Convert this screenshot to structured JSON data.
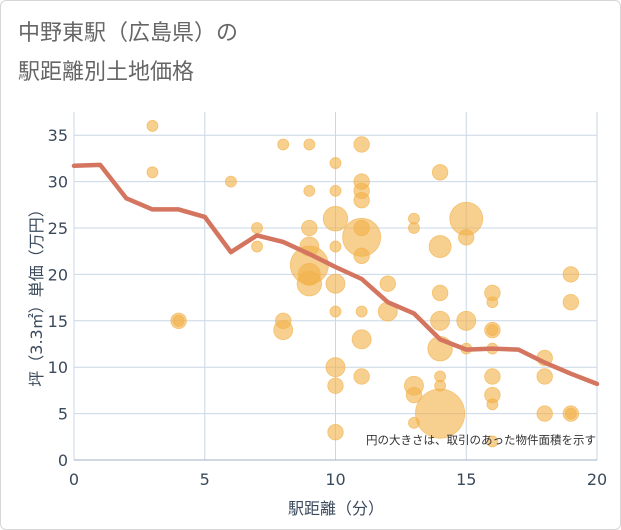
{
  "chart_data": {
    "type": "scatter",
    "title_lines": [
      "中野東駅（広島県）の",
      "駅距離別土地価格"
    ],
    "xlabel": "駅距離（分）",
    "ylabel": "坪（3.3㎡）単価（万円）",
    "xlim": [
      0,
      20
    ],
    "ylim": [
      0,
      37.5
    ],
    "xticks": [
      0,
      5,
      10,
      15,
      20
    ],
    "yticks": [
      0,
      5,
      10,
      15,
      20,
      25,
      30,
      35
    ],
    "grid": true,
    "note": "円の大きさは、取引のあった物件面積を示す",
    "colors": {
      "bubble": "#f2b24a",
      "line": "#d47560",
      "grid": "#c9d7e6",
      "title": "#666666",
      "axis_text": "#3a4a5c"
    },
    "points": [
      {
        "x": 3,
        "y": 36,
        "s": 1
      },
      {
        "x": 3,
        "y": 31,
        "s": 1
      },
      {
        "x": 4,
        "y": 15,
        "s": 2
      },
      {
        "x": 4,
        "y": 15,
        "s": 1
      },
      {
        "x": 6,
        "y": 30,
        "s": 1
      },
      {
        "x": 7,
        "y": 25,
        "s": 1
      },
      {
        "x": 7,
        "y": 23,
        "s": 1
      },
      {
        "x": 8,
        "y": 34,
        "s": 1
      },
      {
        "x": 8,
        "y": 15,
        "s": 2
      },
      {
        "x": 8,
        "y": 14,
        "s": 3
      },
      {
        "x": 9,
        "y": 34,
        "s": 1
      },
      {
        "x": 9,
        "y": 29,
        "s": 1
      },
      {
        "x": 9,
        "y": 25,
        "s": 2
      },
      {
        "x": 9,
        "y": 23,
        "s": 3
      },
      {
        "x": 9,
        "y": 21,
        "s": 12
      },
      {
        "x": 9,
        "y": 20,
        "s": 4
      },
      {
        "x": 9,
        "y": 19,
        "s": 5
      },
      {
        "x": 10,
        "y": 32,
        "s": 1
      },
      {
        "x": 10,
        "y": 29,
        "s": 1
      },
      {
        "x": 10,
        "y": 26,
        "s": 5
      },
      {
        "x": 10,
        "y": 23,
        "s": 1
      },
      {
        "x": 10,
        "y": 19,
        "s": 3
      },
      {
        "x": 10,
        "y": 16,
        "s": 1
      },
      {
        "x": 10,
        "y": 10,
        "s": 3
      },
      {
        "x": 10,
        "y": 8,
        "s": 2
      },
      {
        "x": 10,
        "y": 3,
        "s": 2
      },
      {
        "x": 11,
        "y": 34,
        "s": 2
      },
      {
        "x": 11,
        "y": 30,
        "s": 2
      },
      {
        "x": 11,
        "y": 29,
        "s": 2
      },
      {
        "x": 11,
        "y": 28,
        "s": 2
      },
      {
        "x": 11,
        "y": 25,
        "s": 2
      },
      {
        "x": 11,
        "y": 24,
        "s": 12
      },
      {
        "x": 11,
        "y": 22,
        "s": 2
      },
      {
        "x": 11,
        "y": 16,
        "s": 1
      },
      {
        "x": 11,
        "y": 13,
        "s": 3
      },
      {
        "x": 11,
        "y": 9,
        "s": 2
      },
      {
        "x": 12,
        "y": 19,
        "s": 2
      },
      {
        "x": 12,
        "y": 16,
        "s": 3
      },
      {
        "x": 13,
        "y": 26,
        "s": 1
      },
      {
        "x": 13,
        "y": 25,
        "s": 1
      },
      {
        "x": 13,
        "y": 8,
        "s": 3
      },
      {
        "x": 13,
        "y": 7,
        "s": 2
      },
      {
        "x": 13,
        "y": 4,
        "s": 1
      },
      {
        "x": 14,
        "y": 31,
        "s": 2
      },
      {
        "x": 14,
        "y": 23,
        "s": 4
      },
      {
        "x": 14,
        "y": 18,
        "s": 2
      },
      {
        "x": 14,
        "y": 15,
        "s": 3
      },
      {
        "x": 14,
        "y": 12,
        "s": 5
      },
      {
        "x": 14,
        "y": 9,
        "s": 1
      },
      {
        "x": 14,
        "y": 8,
        "s": 1
      },
      {
        "x": 14,
        "y": 5,
        "s": 20
      },
      {
        "x": 15,
        "y": 26,
        "s": 9
      },
      {
        "x": 15,
        "y": 24,
        "s": 2
      },
      {
        "x": 15,
        "y": 15,
        "s": 3
      },
      {
        "x": 15,
        "y": 12,
        "s": 1
      },
      {
        "x": 16,
        "y": 18,
        "s": 2
      },
      {
        "x": 16,
        "y": 17,
        "s": 1
      },
      {
        "x": 16,
        "y": 14,
        "s": 2
      },
      {
        "x": 16,
        "y": 14,
        "s": 1
      },
      {
        "x": 16,
        "y": 12,
        "s": 1
      },
      {
        "x": 16,
        "y": 9,
        "s": 2
      },
      {
        "x": 16,
        "y": 7,
        "s": 2
      },
      {
        "x": 16,
        "y": 6,
        "s": 1
      },
      {
        "x": 16,
        "y": 2,
        "s": 1
      },
      {
        "x": 18,
        "y": 11,
        "s": 2
      },
      {
        "x": 18,
        "y": 9,
        "s": 2
      },
      {
        "x": 18,
        "y": 5,
        "s": 2
      },
      {
        "x": 19,
        "y": 20,
        "s": 2
      },
      {
        "x": 19,
        "y": 17,
        "s": 2
      },
      {
        "x": 19,
        "y": 5,
        "s": 2
      },
      {
        "x": 19,
        "y": 5,
        "s": 1
      }
    ],
    "trend": {
      "x": [
        0,
        1,
        2,
        3,
        4,
        5,
        6,
        7,
        8,
        9,
        10,
        11,
        12,
        13,
        14,
        15,
        16,
        17,
        18,
        19,
        20
      ],
      "y": [
        31.7,
        31.8,
        28.2,
        27.0,
        27.0,
        26.2,
        22.4,
        24.2,
        23.5,
        22.2,
        20.8,
        19.5,
        17.0,
        15.8,
        13.0,
        11.9,
        12.0,
        11.9,
        10.5,
        9.3,
        8.2
      ]
    }
  }
}
